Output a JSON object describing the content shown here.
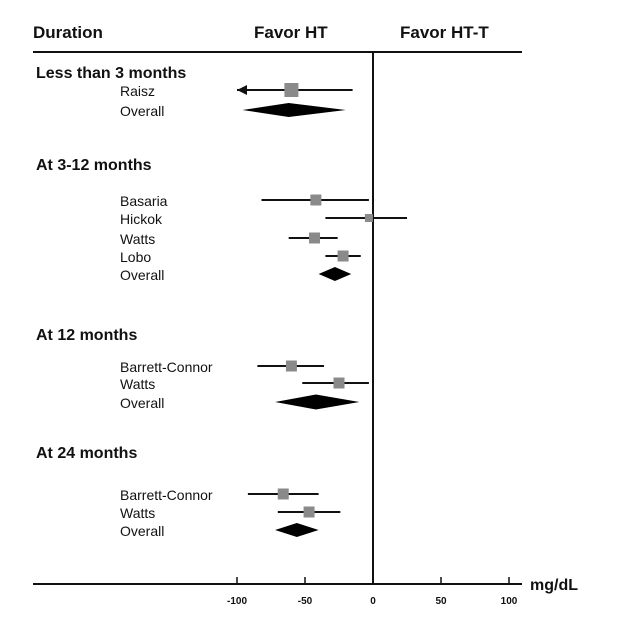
{
  "chart_data": {
    "type": "forest",
    "header": {
      "duration": "Duration",
      "favor_left": "Favor HT",
      "favor_right": "Favor HT-T"
    },
    "x_axis": {
      "unit": "mg/dL",
      "ticks": [
        -100,
        -50,
        0,
        50,
        100
      ],
      "tick_labels": [
        "-100",
        "-50",
        "0",
        "50",
        "100"
      ],
      "range": [
        -100,
        100
      ]
    },
    "groups": [
      {
        "title": "Less than 3 months",
        "studies": [
          {
            "name": "Raisz",
            "estimate": -60,
            "lower": -100,
            "upper": -15,
            "clipped_lower": true
          }
        ],
        "overall": {
          "label": "Overall",
          "estimate": -62,
          "lower": -96,
          "upper": -20
        }
      },
      {
        "title": "At 3-12 months",
        "studies": [
          {
            "name": "Basaria",
            "estimate": -42,
            "lower": -82,
            "upper": -3
          },
          {
            "name": "Hickok",
            "estimate": -3,
            "lower": -35,
            "upper": 25
          },
          {
            "name": "Watts",
            "estimate": -43,
            "lower": -62,
            "upper": -26
          },
          {
            "name": "Lobo",
            "estimate": -22,
            "lower": -35,
            "upper": -9
          }
        ],
        "overall": {
          "label": "Overall",
          "estimate": -28,
          "lower": -40,
          "upper": -16
        }
      },
      {
        "title": "At 12 months",
        "studies": [
          {
            "name": "Barrett-Connor",
            "estimate": -60,
            "lower": -85,
            "upper": -36
          },
          {
            "name": "Watts",
            "estimate": -25,
            "lower": -52,
            "upper": -3
          }
        ],
        "overall": {
          "label": "Overall",
          "estimate": -42,
          "lower": -72,
          "upper": -10
        }
      },
      {
        "title": "At 24 months",
        "studies": [
          {
            "name": "Barrett-Connor",
            "estimate": -66,
            "lower": -92,
            "upper": -40
          },
          {
            "name": "Watts",
            "estimate": -47,
            "lower": -70,
            "upper": -24
          }
        ],
        "overall": {
          "label": "Overall",
          "estimate": -56,
          "lower": -72,
          "upper": -40
        }
      }
    ]
  }
}
